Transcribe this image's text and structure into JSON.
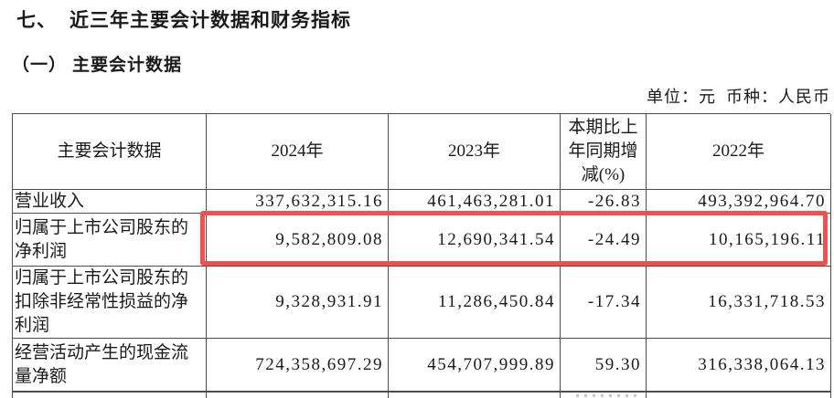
{
  "page": {
    "section_title": {
      "number": "七、",
      "text": "近三年主要会计数据和财务指标"
    },
    "subsection_title": {
      "number": "（一）",
      "text": "主要会计数据"
    },
    "unit_note": "单位：元  币种：人民币"
  },
  "table": {
    "columns": [
      "主要会计数据",
      "2024年",
      "2023年",
      "本期比上\n年同期增\n减(%)",
      "2022年"
    ],
    "rows": [
      {
        "label": "营业收入",
        "y2024": "337,632,315.16",
        "y2023": "461,463,281.01",
        "change": "-26.83",
        "y2022": "493,392,964.70",
        "highlighted": false
      },
      {
        "label": "归属于上市公司股东的\n净利润",
        "y2024": "9,582,809.08",
        "y2023": "12,690,341.54",
        "change": "-24.49",
        "y2022": "10,165,196.11",
        "highlighted": true
      },
      {
        "label": "归属于上市公司股东的\n扣除非经常性损益的净\n利润",
        "y2024": "9,328,931.91",
        "y2023": "11,286,450.84",
        "change": "-17.34",
        "y2022": "16,331,718.53",
        "highlighted": false
      },
      {
        "label": "经营活动产生的现金流\n量净额",
        "y2024": "724,358,697.29",
        "y2023": "454,707,999.89",
        "change": "59.30",
        "y2022": "316,338,064.13",
        "highlighted": false
      }
    ]
  },
  "highlight": {
    "color": "#ef514f"
  }
}
